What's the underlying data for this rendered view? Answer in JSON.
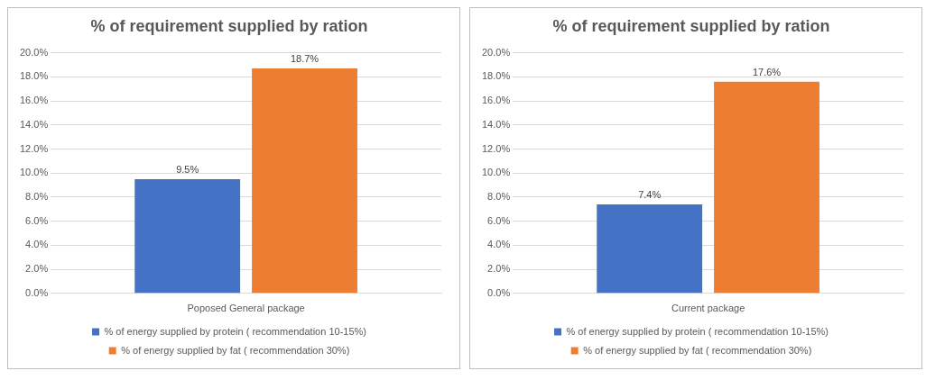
{
  "chart_data": [
    {
      "type": "bar",
      "title": "% of requirement supplied by ration",
      "categories": [
        "Poposed General package"
      ],
      "series": [
        {
          "name": "% of energy supplied by protein ( recommendation 10-15%)",
          "color": "#4472c4",
          "values": [
            9.5
          ],
          "value_labels": [
            "9.5%"
          ]
        },
        {
          "name": "% of energy supplied by fat ( recommendation 30%)",
          "color": "#ed7d31",
          "values": [
            18.7
          ],
          "value_labels": [
            "18.7%"
          ]
        }
      ],
      "ylim": [
        0,
        20
      ],
      "yticks": [
        {
          "value": 0,
          "label": "0.0%"
        },
        {
          "value": 2,
          "label": "2.0%"
        },
        {
          "value": 4,
          "label": "4.0%"
        },
        {
          "value": 6,
          "label": "6.0%"
        },
        {
          "value": 8,
          "label": "8.0%"
        },
        {
          "value": 10,
          "label": "10.0%"
        },
        {
          "value": 12,
          "label": "12.0%"
        },
        {
          "value": 14,
          "label": "14.0%"
        },
        {
          "value": 16,
          "label": "16.0%"
        },
        {
          "value": 18,
          "label": "18.0%"
        },
        {
          "value": 20,
          "label": "20.0%"
        }
      ],
      "grid": "y",
      "legend": "bottom"
    },
    {
      "type": "bar",
      "title": "% of requirement supplied by ration",
      "categories": [
        "Current package"
      ],
      "series": [
        {
          "name": "% of energy supplied by protein ( recommendation 10-15%)",
          "color": "#4472c4",
          "values": [
            7.4
          ],
          "value_labels": [
            "7.4%"
          ]
        },
        {
          "name": "% of energy supplied by fat ( recommendation 30%)",
          "color": "#ed7d31",
          "values": [
            17.6
          ],
          "value_labels": [
            "17.6%"
          ]
        }
      ],
      "ylim": [
        0,
        20
      ],
      "yticks": [
        {
          "value": 0,
          "label": "0.0%"
        },
        {
          "value": 2,
          "label": "2.0%"
        },
        {
          "value": 4,
          "label": "4.0%"
        },
        {
          "value": 6,
          "label": "6.0%"
        },
        {
          "value": 8,
          "label": "8.0%"
        },
        {
          "value": 10,
          "label": "10.0%"
        },
        {
          "value": 12,
          "label": "12.0%"
        },
        {
          "value": 14,
          "label": "14.0%"
        },
        {
          "value": 16,
          "label": "16.0%"
        },
        {
          "value": 18,
          "label": "18.0%"
        },
        {
          "value": 20,
          "label": "20.0%"
        }
      ],
      "grid": "y",
      "legend": "bottom"
    }
  ]
}
